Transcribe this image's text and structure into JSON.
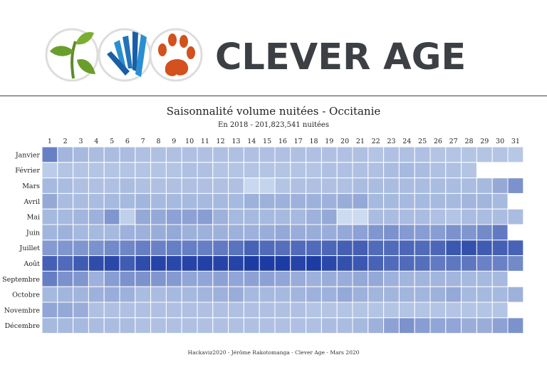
{
  "logo": {
    "brand_text": "CLEVER AGE",
    "icons": [
      "leaf-icon",
      "hands-icon",
      "paw-icon"
    ]
  },
  "chart_data": {
    "type": "heatmap",
    "title": "Saisonnalité volume nuitées - Occitanie",
    "subtitle": "En 2018 - 201,823,541 nuitées",
    "x": [
      1,
      2,
      3,
      4,
      5,
      6,
      7,
      8,
      9,
      10,
      11,
      12,
      13,
      14,
      15,
      16,
      17,
      18,
      19,
      20,
      21,
      22,
      23,
      24,
      25,
      26,
      27,
      28,
      29,
      30,
      31
    ],
    "y": [
      "Janvier",
      "Février",
      "Mars",
      "Avril",
      "Mai",
      "Juin",
      "Juillet",
      "Août",
      "Septembre",
      "Octobre",
      "Novembre",
      "Décembre"
    ],
    "color_scale": {
      "low": "#deebf7",
      "high": "#08299a"
    },
    "intensity": [
      [
        0.55,
        0.28,
        0.26,
        0.24,
        0.24,
        0.24,
        0.22,
        0.22,
        0.22,
        0.22,
        0.22,
        0.22,
        0.22,
        0.22,
        0.22,
        0.22,
        0.22,
        0.22,
        0.22,
        0.22,
        0.22,
        0.2,
        0.22,
        0.22,
        0.22,
        0.2,
        0.2,
        0.2,
        0.2,
        0.2,
        0.18
      ],
      [
        0.16,
        0.2,
        0.2,
        0.2,
        0.2,
        0.2,
        0.2,
        0.2,
        0.2,
        0.22,
        0.22,
        0.2,
        0.2,
        0.2,
        0.2,
        0.2,
        0.2,
        0.2,
        0.22,
        0.22,
        0.22,
        0.22,
        0.24,
        0.26,
        0.24,
        0.22,
        0.22,
        0.2,
        null,
        null,
        null
      ],
      [
        0.26,
        0.24,
        0.22,
        0.22,
        0.22,
        0.24,
        0.22,
        0.22,
        0.22,
        0.22,
        0.22,
        0.22,
        0.22,
        0.1,
        0.12,
        0.2,
        0.22,
        0.22,
        0.22,
        0.22,
        0.24,
        0.24,
        0.24,
        0.24,
        0.24,
        0.24,
        0.24,
        0.24,
        0.26,
        0.34,
        0.46
      ],
      [
        0.34,
        0.24,
        0.24,
        0.24,
        0.26,
        0.26,
        0.28,
        0.26,
        0.26,
        0.26,
        0.26,
        0.26,
        0.26,
        0.3,
        0.3,
        0.3,
        0.3,
        0.3,
        0.3,
        0.32,
        0.34,
        0.26,
        0.26,
        0.26,
        0.26,
        0.26,
        0.26,
        0.28,
        0.28,
        0.26,
        null
      ],
      [
        0.26,
        0.26,
        0.28,
        0.3,
        0.44,
        0.14,
        0.34,
        0.34,
        0.38,
        0.38,
        0.4,
        0.3,
        0.26,
        0.26,
        0.26,
        0.26,
        0.26,
        0.3,
        0.34,
        0.08,
        0.08,
        0.24,
        0.24,
        0.24,
        0.24,
        0.22,
        0.2,
        0.24,
        0.24,
        0.24,
        0.24
      ],
      [
        0.28,
        0.3,
        0.26,
        0.26,
        0.26,
        0.3,
        0.3,
        0.32,
        0.34,
        0.3,
        0.3,
        0.3,
        0.3,
        0.3,
        0.32,
        0.34,
        0.32,
        0.32,
        0.32,
        0.34,
        0.38,
        0.44,
        0.46,
        0.42,
        0.4,
        0.4,
        0.46,
        0.44,
        0.5,
        0.58,
        null
      ],
      [
        0.42,
        0.44,
        0.44,
        0.46,
        0.5,
        0.52,
        0.56,
        0.54,
        0.56,
        0.56,
        0.56,
        0.58,
        0.62,
        0.7,
        0.66,
        0.64,
        0.66,
        0.66,
        0.68,
        0.72,
        0.72,
        0.66,
        0.66,
        0.68,
        0.66,
        0.68,
        0.76,
        0.8,
        0.74,
        0.72,
        0.7
      ],
      [
        0.72,
        0.66,
        0.74,
        0.82,
        0.84,
        0.74,
        0.82,
        0.86,
        0.84,
        0.86,
        0.88,
        0.86,
        0.86,
        0.9,
        0.9,
        0.9,
        0.86,
        0.9,
        0.84,
        0.8,
        0.76,
        0.7,
        0.66,
        0.66,
        0.64,
        0.58,
        0.6,
        0.6,
        0.54,
        0.54,
        0.5
      ],
      [
        0.56,
        0.46,
        0.44,
        0.3,
        0.4,
        0.46,
        0.46,
        0.44,
        0.42,
        0.36,
        0.36,
        0.38,
        0.36,
        0.38,
        0.38,
        0.36,
        0.32,
        0.3,
        0.32,
        0.32,
        0.34,
        0.34,
        0.3,
        0.28,
        0.28,
        0.28,
        0.28,
        0.26,
        0.26,
        0.26,
        null
      ],
      [
        0.26,
        0.28,
        0.28,
        0.3,
        0.32,
        0.3,
        0.24,
        0.24,
        0.26,
        0.26,
        0.28,
        0.3,
        0.32,
        0.26,
        0.26,
        0.26,
        0.28,
        0.3,
        0.3,
        0.34,
        0.3,
        0.28,
        0.28,
        0.28,
        0.28,
        0.3,
        0.34,
        0.26,
        0.26,
        0.26,
        0.3
      ],
      [
        0.36,
        0.34,
        0.32,
        0.22,
        0.22,
        0.22,
        0.22,
        0.22,
        0.22,
        0.22,
        0.22,
        0.22,
        0.22,
        0.22,
        0.22,
        0.22,
        0.22,
        0.2,
        0.2,
        0.2,
        0.2,
        0.2,
        0.2,
        0.2,
        0.2,
        0.2,
        0.2,
        0.2,
        0.2,
        0.2,
        null
      ],
      [
        0.26,
        0.26,
        0.26,
        0.24,
        0.24,
        0.24,
        0.22,
        0.22,
        0.22,
        0.22,
        0.22,
        0.22,
        0.22,
        0.22,
        0.22,
        0.22,
        0.22,
        0.22,
        0.24,
        0.24,
        0.26,
        0.3,
        0.38,
        0.46,
        0.4,
        0.36,
        0.36,
        0.32,
        0.32,
        0.38,
        0.46
      ]
    ]
  },
  "footer": {
    "credit": "Hackaviz2020 - Jérôme Rakotomanga - Clever Age - Mars 2020"
  }
}
